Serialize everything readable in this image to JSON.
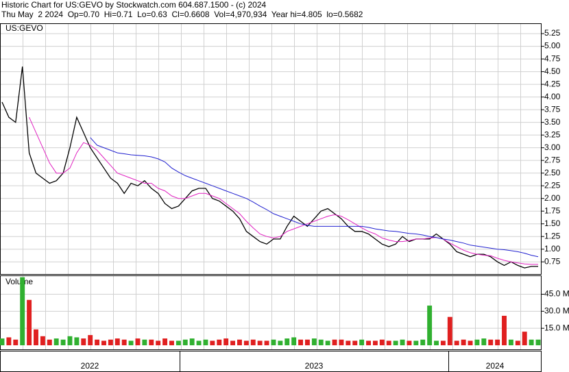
{
  "header": {
    "line1": "Historic Chart for US:GEVO by Stockwatch.com 604.687.1500 - (c) 2024",
    "line2": "Thu May  2 2024  Op=0.70  Hi=0.71  Lo=0.63  Cl=0.6608  Vol=4,970,934  Year hi=4.805  lo=0.5682"
  },
  "chart_data": [
    {
      "type": "line",
      "label": "US:GEVO",
      "grid": true,
      "ylim": [
        0.51,
        5.44
      ],
      "yticks": [
        0.75,
        {
          "value": 1,
          "label": "1.00"
        },
        1.25,
        {
          "value": 1.5,
          "label": "1.50"
        },
        1.75,
        {
          "value": 2,
          "label": "2.00"
        },
        2.25,
        {
          "value": 2.5,
          "label": "2.50"
        },
        2.75,
        {
          "value": 3,
          "label": "3.00"
        },
        3.25,
        {
          "value": 3.5,
          "label": "3.50"
        },
        3.75,
        {
          "value": 4,
          "label": "4.00"
        },
        4.25,
        {
          "value": 4.5,
          "label": "4.50"
        },
        4.75,
        {
          "value": 5,
          "label": "5.00"
        },
        5.25
      ],
      "series": [
        {
          "color": "#000000",
          "values": [
            3.9,
            3.6,
            3.5,
            4.6,
            2.9,
            2.5,
            2.4,
            2.3,
            2.35,
            2.5,
            3.0,
            3.6,
            3.3,
            3.0,
            2.8,
            2.6,
            2.4,
            2.3,
            2.1,
            2.3,
            2.25,
            2.35,
            2.2,
            2.1,
            1.9,
            1.8,
            1.85,
            2.0,
            2.15,
            2.2,
            2.2,
            2.0,
            1.95,
            1.85,
            1.75,
            1.6,
            1.35,
            1.25,
            1.15,
            1.1,
            1.2,
            1.2,
            1.45,
            1.65,
            1.55,
            1.45,
            1.6,
            1.75,
            1.8,
            1.7,
            1.6,
            1.45,
            1.35,
            1.35,
            1.3,
            1.2,
            1.1,
            1.05,
            1.1,
            1.25,
            1.15,
            1.2,
            1.2,
            1.2,
            1.3,
            1.2,
            1.1,
            0.95,
            0.9,
            0.85,
            0.9,
            0.9,
            0.85,
            0.75,
            0.68,
            0.75,
            0.68,
            0.63,
            0.66,
            0.66
          ]
        },
        {
          "color": "#e020c0",
          "values": [
            null,
            null,
            null,
            null,
            3.6,
            3.3,
            3.0,
            2.7,
            2.5,
            2.5,
            2.6,
            2.9,
            3.1,
            3.05,
            2.95,
            2.8,
            2.65,
            2.5,
            2.45,
            2.4,
            2.35,
            2.3,
            2.3,
            2.2,
            2.15,
            2.05,
            2.0,
            2.0,
            2.05,
            2.1,
            2.1,
            2.05,
            2.0,
            1.9,
            1.8,
            1.7,
            1.55,
            1.42,
            1.3,
            1.25,
            1.22,
            1.25,
            1.35,
            1.4,
            1.45,
            1.5,
            1.55,
            1.6,
            1.65,
            1.68,
            1.65,
            1.58,
            1.5,
            1.42,
            1.35,
            1.3,
            1.22,
            1.18,
            1.15,
            1.15,
            1.17,
            1.2,
            1.2,
            1.22,
            1.23,
            1.2,
            1.12,
            1.05,
            0.98,
            0.93,
            0.9,
            0.88,
            0.87,
            0.82,
            0.78,
            0.75,
            0.73,
            0.71,
            0.7,
            0.7
          ]
        },
        {
          "color": "#2020d0",
          "values": [
            null,
            null,
            null,
            null,
            null,
            null,
            null,
            null,
            null,
            null,
            null,
            null,
            null,
            3.2,
            3.05,
            3.0,
            2.95,
            2.9,
            2.88,
            2.86,
            2.85,
            2.84,
            2.82,
            2.78,
            2.72,
            2.6,
            2.52,
            2.45,
            2.4,
            2.35,
            2.3,
            2.25,
            2.2,
            2.15,
            2.1,
            2.05,
            2.0,
            1.93,
            1.85,
            1.78,
            1.7,
            1.65,
            1.6,
            1.55,
            1.5,
            1.47,
            1.45,
            1.45,
            1.45,
            1.45,
            1.45,
            1.45,
            1.45,
            1.45,
            1.43,
            1.4,
            1.38,
            1.36,
            1.35,
            1.33,
            1.31,
            1.3,
            1.28,
            1.25,
            1.23,
            1.2,
            1.18,
            1.15,
            1.12,
            1.08,
            1.06,
            1.04,
            1.02,
            1.0,
            0.99,
            0.97,
            0.95,
            0.92,
            0.88,
            0.85
          ]
        }
      ]
    },
    {
      "type": "bar",
      "label": "Volume",
      "grid": true,
      "ylim": [
        0,
        61
      ],
      "up_color": "#30b030",
      "down_color": "#e02020",
      "yticks": [
        {
          "value": 15,
          "label": "15.0 M"
        },
        {
          "value": 30,
          "label": "30.0 M"
        },
        {
          "value": 45,
          "label": "45.0 M"
        }
      ],
      "values": [
        6,
        7,
        5,
        60,
        40,
        14,
        8,
        5,
        6,
        5,
        8,
        7,
        6,
        9,
        5,
        4,
        5,
        6,
        5,
        4,
        6,
        5,
        5,
        4,
        6,
        4,
        4,
        5,
        6,
        4,
        5,
        4,
        5,
        6,
        4,
        5,
        4,
        5,
        4,
        4,
        5,
        4,
        6,
        7,
        5,
        5,
        6,
        5,
        4,
        5,
        5,
        4,
        4,
        5,
        4,
        4,
        5,
        4,
        4,
        5,
        4,
        4,
        5,
        35,
        4,
        4,
        25,
        4,
        5,
        4,
        5,
        6,
        5,
        5,
        26,
        5,
        4,
        12,
        5,
        5
      ]
    }
  ],
  "x_axis": {
    "labels": [
      "2022",
      "2023",
      "2024"
    ]
  }
}
